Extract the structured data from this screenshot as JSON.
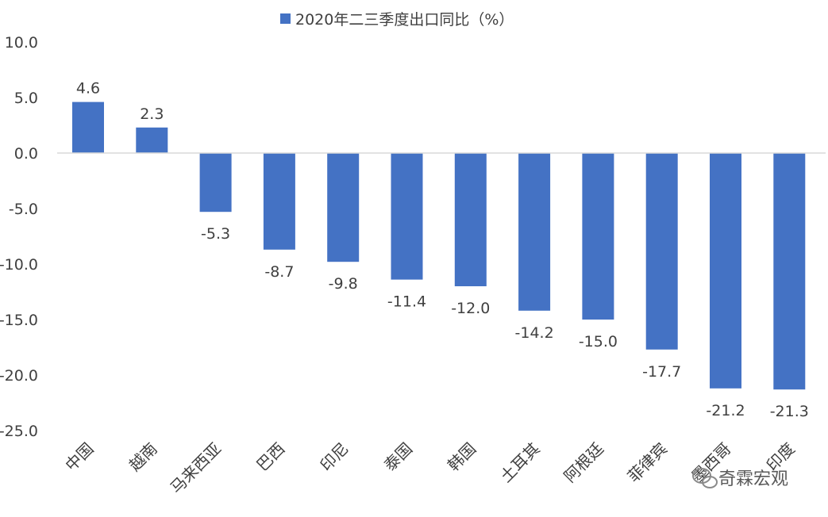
{
  "chart_data": {
    "type": "bar",
    "categories": [
      "中国",
      "越南",
      "马来西亚",
      "巴西",
      "印尼",
      "泰国",
      "韩国",
      "土耳其",
      "阿根廷",
      "菲律宾",
      "墨西哥",
      "印度"
    ],
    "series": [
      {
        "name": "2020年二三季度出口同比（%）",
        "values": [
          4.6,
          2.3,
          -5.3,
          -8.7,
          -9.8,
          -11.4,
          -12.0,
          -14.2,
          -15.0,
          -17.7,
          -21.2,
          -21.3
        ],
        "color": "#4472C4"
      }
    ],
    "title": "",
    "xlabel": "",
    "ylabel": "",
    "ylim": [
      -25,
      10
    ],
    "y_ticks": [
      "10.0",
      "5.0",
      "0.0",
      "-5.0",
      "-10.0",
      "-15.0",
      "-20.0",
      "-25.0"
    ],
    "data_labels": [
      "4.6",
      "2.3",
      "-5.3",
      "-8.7",
      "-9.8",
      "-11.4",
      "-12.0",
      "-14.2",
      "-15.0",
      "-17.7",
      "-21.2",
      "-21.3"
    ],
    "legend_position": "top-center",
    "grid": false
  },
  "watermark": {
    "text": "奇霖宏观",
    "icon": "wechat-icon"
  }
}
